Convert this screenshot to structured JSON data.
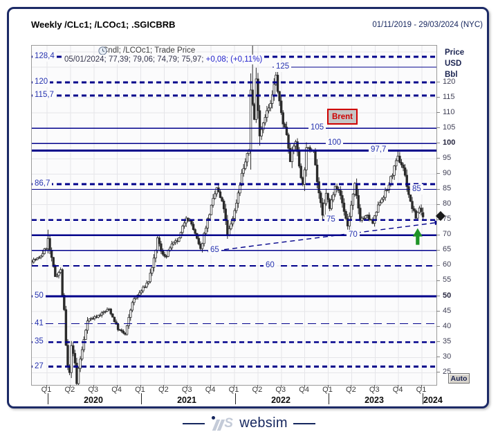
{
  "header": {
    "title": "Weekly /CLc1; /LCOc1; .SGICBRB",
    "date_range": "01/11/2019 - 29/03/2024 (NYC)"
  },
  "legend": {
    "series": "Cndl; /LCOc1; Trade Price",
    "ohlc": "05/01/2024; 77,39; 79,06; 74,79; 75,97; ",
    "change": "+0,08; (+0,11%)"
  },
  "instrument_label": {
    "text": "Brent"
  },
  "axis": {
    "y_title": [
      "Price",
      "USD",
      "Bbl"
    ],
    "y_ticks": [
      120,
      115,
      110,
      105,
      100,
      95,
      90,
      85,
      80,
      75,
      70,
      65,
      60,
      55,
      50,
      45,
      40,
      35,
      30,
      25
    ],
    "y_bold_ticks": [
      100,
      50
    ],
    "x_quarters": [
      "Q1",
      "Q2",
      "Q3",
      "Q4",
      "Q1",
      "Q2",
      "Q3",
      "Q4",
      "Q1",
      "Q2",
      "Q3",
      "Q4",
      "Q1",
      "Q2",
      "Q3",
      "Q4",
      "Q1"
    ],
    "x_years": [
      "2020",
      "2021",
      "2022",
      "2023",
      "2024"
    ],
    "auto_label": "Auto"
  },
  "watermark": {
    "text": "websim"
  },
  "colors": {
    "line_navy": "#00008b",
    "label_blue": "#2633b0",
    "candle": "#2b2b2b",
    "grid": "#e5e5e9",
    "brent_red": "#cf0000",
    "arrow_green": "#1f9427"
  },
  "chart_data": {
    "type": "candlestick",
    "title": "Weekly /CLc1; /LCOc1; .SGICBRB (Brent crude, weekly candles)",
    "period": "weekly",
    "date_range": "01/11/2019 - 29/03/2024",
    "ylabel": "Price USD Bbl",
    "ylim": [
      21,
      132
    ],
    "y_grid_step": 5,
    "weeks": 219,
    "week0_date": "2019-11-01",
    "anchors_weekly_close": [
      [
        0,
        61.7
      ],
      [
        4,
        62.4
      ],
      [
        8,
        66.0
      ],
      [
        9,
        68.6
      ],
      [
        10,
        65.0
      ],
      [
        13,
        56.6
      ],
      [
        16,
        58.5
      ],
      [
        17,
        50.5
      ],
      [
        18,
        45.3
      ],
      [
        19,
        33.9
      ],
      [
        20,
        27.0
      ],
      [
        21,
        24.9
      ],
      [
        22,
        34.1
      ],
      [
        24,
        28.1
      ],
      [
        25,
        21.4
      ],
      [
        26,
        26.4
      ],
      [
        28,
        32.5
      ],
      [
        31,
        42.3
      ],
      [
        35,
        43.1
      ],
      [
        39,
        44.4
      ],
      [
        43,
        45.8
      ],
      [
        46,
        41.9
      ],
      [
        48,
        39.3
      ],
      [
        52,
        37.5
      ],
      [
        56,
        48.2
      ],
      [
        61,
        51.8
      ],
      [
        65,
        55.0
      ],
      [
        69,
        64.4
      ],
      [
        70,
        69.4
      ],
      [
        72,
        64.5
      ],
      [
        75,
        63.0
      ],
      [
        77,
        66.1
      ],
      [
        82,
        68.7
      ],
      [
        86,
        76.2
      ],
      [
        89,
        73.6
      ],
      [
        94,
        65.2
      ],
      [
        97,
        72.9
      ],
      [
        100,
        79.3
      ],
      [
        103,
        85.5
      ],
      [
        107,
        78.9
      ],
      [
        109,
        69.9
      ],
      [
        113,
        77.8
      ],
      [
        117,
        90.0
      ],
      [
        121,
        97.9
      ],
      [
        122,
        118.1
      ],
      [
        123,
        112.7
      ],
      [
        124,
        107.9
      ],
      [
        125,
        120.7
      ],
      [
        127,
        102.8
      ],
      [
        130,
        109.3
      ],
      [
        133,
        112.6
      ],
      [
        136,
        122.0
      ],
      [
        138,
        113.1
      ],
      [
        140,
        107.0
      ],
      [
        142,
        103.2
      ],
      [
        144,
        94.9
      ],
      [
        147,
        101.0
      ],
      [
        149,
        92.8
      ],
      [
        151,
        86.2
      ],
      [
        153,
        97.9
      ],
      [
        157,
        98.6
      ],
      [
        159,
        87.6
      ],
      [
        162,
        76.1
      ],
      [
        164,
        84.0
      ],
      [
        166,
        78.6
      ],
      [
        169,
        86.7
      ],
      [
        172,
        83.0
      ],
      [
        176,
        73.0
      ],
      [
        180,
        86.3
      ],
      [
        183,
        75.3
      ],
      [
        187,
        76.1
      ],
      [
        190,
        73.9
      ],
      [
        194,
        81.1
      ],
      [
        198,
        84.8
      ],
      [
        200,
        88.6
      ],
      [
        204,
        95.3
      ],
      [
        207,
        92.2
      ],
      [
        211,
        80.6
      ],
      [
        214,
        75.8
      ],
      [
        216,
        79.1
      ],
      [
        218,
        75.97
      ]
    ],
    "overrides": {
      "9": {
        "h": 71.8
      },
      "25": {
        "l": 17.5
      },
      "123": {
        "h": 139.13
      },
      "136": {
        "h": 125.19
      },
      "204": {
        "h": 97.69
      },
      "218": {
        "o": 77.39,
        "h": 79.06,
        "l": 74.79,
        "c": 75.97
      }
    },
    "last_candle": {
      "date": "05/01/2024",
      "open": 77.39,
      "high": 79.06,
      "low": 74.79,
      "close": 75.97,
      "change": "+0,08",
      "change_pct": "+0,11%"
    },
    "levels": [
      {
        "price": 128.4,
        "label": "128,4",
        "style": "dashed-bold",
        "label_pos": "left"
      },
      {
        "price": 125,
        "label": "125",
        "style": "solid",
        "label_pos": 350,
        "x1": 348
      },
      {
        "price": 120,
        "label": "120",
        "style": "dashed-bold",
        "label_pos": "left"
      },
      {
        "price": 115.7,
        "label": "115,7",
        "style": "dashed-bold",
        "label_pos": "left"
      },
      {
        "price": 105,
        "label": "105",
        "style": "solid",
        "label_pos": 400
      },
      {
        "price": 100,
        "label": "100",
        "style": "solid",
        "label_pos": 425
      },
      {
        "price": 97.7,
        "label": "97,7",
        "style": "solid-thick",
        "label_pos": 487
      },
      {
        "price": 86.7,
        "label": "86,7",
        "style": "dashed-bold",
        "label_pos": "left"
      },
      {
        "price": 85,
        "label": "85",
        "style": "solid",
        "label_pos": 547
      },
      {
        "price": 75,
        "label": "75",
        "style": "dashed-bold",
        "label_pos": 423
      },
      {
        "price": 70,
        "label": "70",
        "style": "solid-thick",
        "label_pos": 455
      },
      {
        "price": 65,
        "label": "65",
        "style": "solid",
        "label_pos": 255
      },
      {
        "price": 60,
        "label": "60",
        "style": "dashed-med",
        "label_pos": 335
      },
      {
        "price": 50,
        "label": "50",
        "style": "solid-thick",
        "label_pos": "left"
      },
      {
        "price": 41,
        "label": "41",
        "style": "dashed-thin",
        "label_pos": "left"
      },
      {
        "price": 35,
        "label": "35",
        "style": "dashed-bold",
        "label_pos": "left"
      },
      {
        "price": 27,
        "label": "27",
        "style": "dashed-bold",
        "label_pos": "left"
      }
    ],
    "trendline": {
      "style": "dashed",
      "from": {
        "week": 98,
        "price": 64.6
      },
      "to": {
        "week": 228,
        "price": 74.3
      },
      "arrow_end": true
    },
    "markers": {
      "up_arrow": {
        "week": 215,
        "price_tip": 72.3
      },
      "current_price_marker": 75.97
    }
  }
}
